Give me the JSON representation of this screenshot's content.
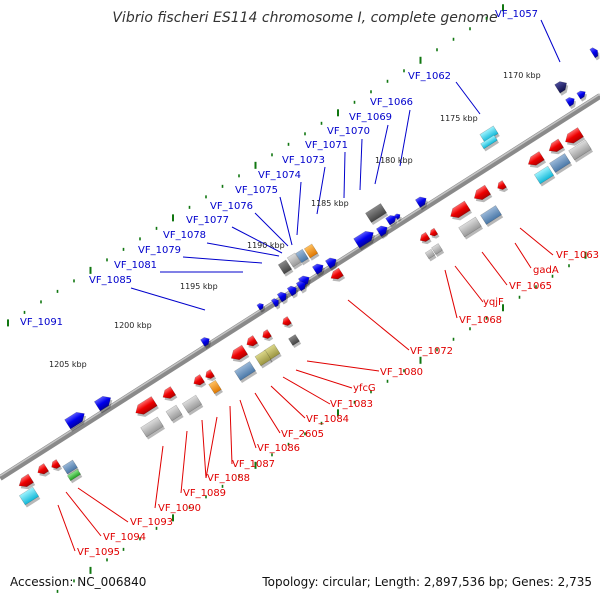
{
  "title": "Vibrio fischeri ES114 chromosome I, complete genome",
  "footer": {
    "accession": "Accession: NC_006840",
    "summary": "Topology: circular; Length: 2,897,536 bp; Genes: 2,735"
  },
  "colors": {
    "forward_label": "#0000cc",
    "reverse_label": "#e00000",
    "tick": "#117711",
    "backbone": "#8a8a8a"
  },
  "kbp_labels": [
    "1170 kbp",
    "1175 kbp",
    "1180 kbp",
    "1185 kbp",
    "1190 kbp",
    "1195 kbp",
    "1200 kbp",
    "1205 kbp"
  ],
  "top_genes": [
    "VF_1057",
    "VF_1062",
    "VF_1066",
    "VF_1069",
    "VF_1070",
    "VF_1071",
    "VF_1073",
    "VF_1074",
    "VF_1075",
    "VF_1076",
    "VF_1077",
    "VF_1078",
    "VF_1079",
    "VF_1081",
    "VF_1085",
    "VF_1091"
  ],
  "bottom_genes": [
    "VF_1063",
    "gadA",
    "VF_1065",
    "yqjF",
    "VF_1068",
    "VF_1072",
    "VF_1080",
    "yfcG",
    "VF_1083",
    "VF_1084",
    "VF_2605",
    "VF_1086",
    "VF_1087",
    "VF_1088",
    "VF_1089",
    "VF_1090",
    "VF_1093",
    "VF_1094",
    "VF_1095"
  ]
}
